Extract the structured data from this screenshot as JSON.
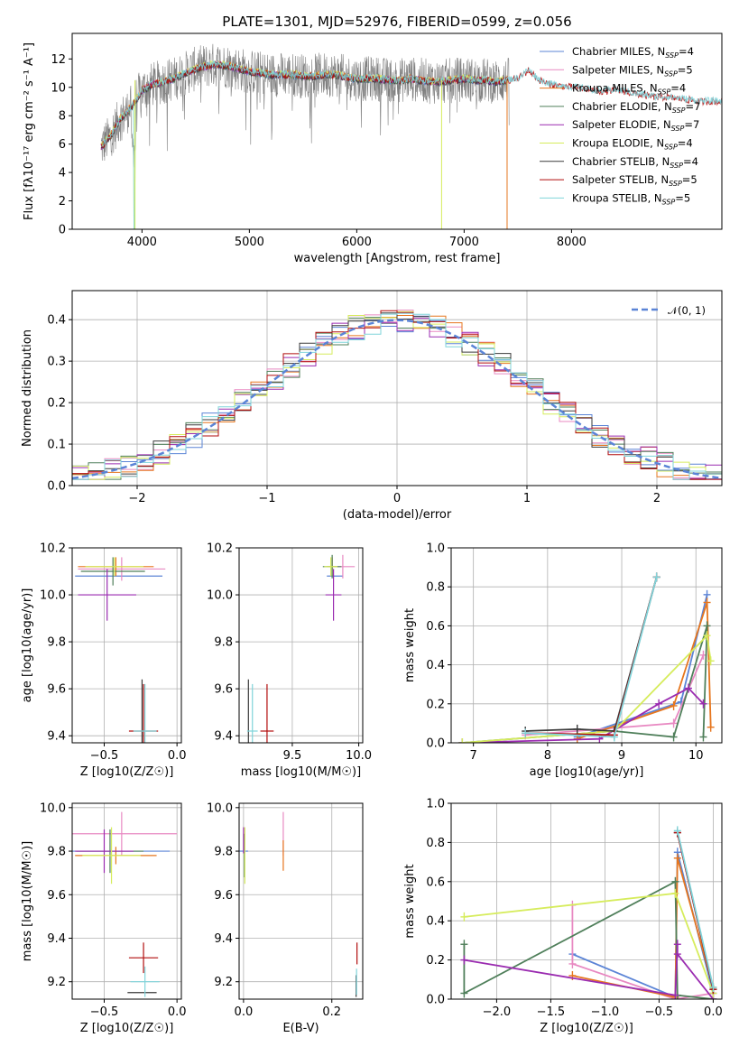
{
  "title": "PLATE=1301, MJD=52976, FIBERID=0599, z=0.056",
  "colors": {
    "Chabrier MILES": "#5b84d6",
    "Salpeter MILES": "#e889c2",
    "Kroupa MILES": "#e6761e",
    "Chabrier ELODIE": "#4f7f5a",
    "Salpeter ELODIE": "#9a2bb0",
    "Kroupa ELODIE": "#d6ec5c",
    "Chabrier STELIB": "#3a3a3a",
    "Salpeter STELIB": "#b10d0d",
    "Kroupa STELIB": "#7fd4da",
    "data": "#7f7f7f",
    "normal": "#5b84d6"
  },
  "legend": {
    "spectrum": [
      {
        "label": "Chabrier MILES, N",
        "sub": "SSP",
        "tail": "=4",
        "color": "#5b84d6"
      },
      {
        "label": "Salpeter MILES, N",
        "sub": "SSP",
        "tail": "=5",
        "color": "#e889c2"
      },
      {
        "label": "Kroupa MILES, N",
        "sub": "SSP",
        "tail": "=4",
        "color": "#e6761e"
      },
      {
        "label": "Chabrier ELODIE, N",
        "sub": "SSP",
        "tail": "=7",
        "color": "#4f7f5a"
      },
      {
        "label": "Salpeter ELODIE, N",
        "sub": "SSP",
        "tail": "=7",
        "color": "#9a2bb0"
      },
      {
        "label": "Kroupa ELODIE, N",
        "sub": "SSP",
        "tail": "=4",
        "color": "#d6ec5c"
      },
      {
        "label": "Chabrier STELIB, N",
        "sub": "SSP",
        "tail": "=4",
        "color": "#3a3a3a"
      },
      {
        "label": "Salpeter STELIB, N",
        "sub": "SSP",
        "tail": "=5",
        "color": "#b10d0d"
      },
      {
        "label": "Kroupa STELIB, N",
        "sub": "SSP",
        "tail": "=5",
        "color": "#7fd4da"
      }
    ],
    "hist": "𝒩(0, 1)"
  },
  "chart_data": [
    {
      "id": "spectrum",
      "type": "line",
      "xlabel": "wavelength [Angstrom, rest frame]",
      "ylabel": "Flux [fλ10⁻¹⁷ erg cm⁻² s⁻¹ A⁻¹]",
      "xlim": [
        3350,
        9400
      ],
      "ylim": [
        0,
        13.8
      ],
      "xticks": [
        4000,
        5000,
        6000,
        7000,
        8000
      ],
      "yticks": [
        0,
        2,
        4,
        6,
        8,
        10,
        12
      ],
      "x": [
        3620,
        3700,
        3800,
        3900,
        3960,
        4000,
        4100,
        4200,
        4300,
        4400,
        4500,
        4600,
        4700,
        4800,
        4900,
        5000,
        5100,
        5200,
        5300,
        5400,
        5500,
        5600,
        5700,
        5800,
        5900,
        6000,
        6100,
        6200,
        6300,
        6400,
        6500,
        6600,
        6700,
        6800,
        6900,
        7000,
        7100,
        7200,
        7300,
        7400,
        7500,
        7600,
        7700,
        7800,
        7900,
        8000,
        8100,
        8200,
        8300,
        8400,
        8500,
        8600,
        8700,
        8800,
        8900,
        9000,
        9100,
        9200
      ],
      "y": [
        5.8,
        6.5,
        7.8,
        8.6,
        9.3,
        9.8,
        10.2,
        10.4,
        10.6,
        11.0,
        11.3,
        11.5,
        11.6,
        11.5,
        11.3,
        11.1,
        11.0,
        10.9,
        10.9,
        10.9,
        10.8,
        10.8,
        10.9,
        10.9,
        10.7,
        10.6,
        10.6,
        10.6,
        10.5,
        10.5,
        10.6,
        10.5,
        10.4,
        10.4,
        10.5,
        10.6,
        10.5,
        10.5,
        10.4,
        10.5,
        10.6,
        11.2,
        10.5,
        10.2,
        10.1,
        10.0,
        9.9,
        9.8,
        9.7,
        9.8,
        9.7,
        9.5,
        9.4,
        9.3,
        9.3,
        9.2,
        9.1,
        9.0
      ]
    },
    {
      "id": "residual-hist",
      "type": "bar",
      "xlabel": "(data-model)/error",
      "ylabel": "Normed distribution",
      "xlim": [
        -2.5,
        2.5
      ],
      "ylim": [
        0,
        0.47
      ],
      "xticks": [
        -2,
        -1,
        0,
        1,
        2
      ],
      "yticks": [
        0.0,
        0.1,
        0.2,
        0.3,
        0.4
      ],
      "bin_width": 0.125,
      "gaussian": {
        "mean": 0,
        "sigma": 1
      }
    },
    {
      "id": "age-vs-Z",
      "type": "scatter",
      "xlabel": "Z [log10(Z/Z☉)]",
      "ylabel": "age  [log10(age/yr)]",
      "xlim": [
        -0.72,
        0.03
      ],
      "ylim": [
        9.37,
        10.2
      ],
      "xticks": [
        -0.5,
        0.0
      ],
      "yticks": [
        9.4,
        9.6,
        9.8,
        10.0,
        10.2
      ],
      "points": [
        {
          "series": "Chabrier MILES",
          "x": -0.4,
          "y": 10.08,
          "xerr": 0.3,
          "yerr": 0.0
        },
        {
          "series": "Salpeter MILES",
          "x": -0.38,
          "y": 10.11,
          "xerr": 0.3,
          "yerr": 0.05
        },
        {
          "series": "Kroupa MILES",
          "x": -0.42,
          "y": 10.12,
          "xerr": 0.26,
          "yerr": 0.04
        },
        {
          "series": "Chabrier ELODIE",
          "x": -0.44,
          "y": 10.1,
          "xerr": 0.22,
          "yerr": 0.06
        },
        {
          "series": "Salpeter ELODIE",
          "x": -0.48,
          "y": 10.0,
          "xerr": 0.2,
          "yerr": 0.11
        },
        {
          "series": "Kroupa ELODIE",
          "x": -0.43,
          "y": 10.12,
          "xerr": 0.2,
          "yerr": 0.04
        },
        {
          "series": "Chabrier STELIB",
          "x": -0.24,
          "y": 9.42,
          "xerr": 0.0,
          "yerr": 0.22
        },
        {
          "series": "Salpeter STELIB",
          "x": -0.23,
          "y": 9.42,
          "xerr": 0.1,
          "yerr": 0.2
        },
        {
          "series": "Kroupa STELIB",
          "x": -0.22,
          "y": 9.42,
          "xerr": 0.08,
          "yerr": 0.2
        }
      ]
    },
    {
      "id": "age-vs-mass",
      "type": "scatter",
      "xlabel": "mass [log10(M/M☉)]",
      "ylabel": "",
      "xlim": [
        9.1,
        10.03
      ],
      "ylim": [
        9.37,
        10.2
      ],
      "xticks": [
        9.5,
        10.0
      ],
      "yticks": [
        9.4,
        9.6,
        9.8,
        10.0,
        10.2
      ],
      "points": [
        {
          "series": "Chabrier MILES",
          "x": 9.82,
          "y": 10.08,
          "xerr": 0.06,
          "yerr": 0.0
        },
        {
          "series": "Salpeter MILES",
          "x": 9.88,
          "y": 10.12,
          "xerr": 0.09,
          "yerr": 0.05
        },
        {
          "series": "Kroupa MILES",
          "x": 9.8,
          "y": 10.12,
          "xerr": 0.04,
          "yerr": 0.04
        },
        {
          "series": "Chabrier ELODIE",
          "x": 9.8,
          "y": 10.12,
          "xerr": 0.07,
          "yerr": 0.05
        },
        {
          "series": "Salpeter ELODIE",
          "x": 9.81,
          "y": 10.0,
          "xerr": 0.06,
          "yerr": 0.11
        },
        {
          "series": "Kroupa ELODIE",
          "x": 9.79,
          "y": 10.12,
          "xerr": 0.05,
          "yerr": 0.04
        },
        {
          "series": "Chabrier STELIB",
          "x": 9.17,
          "y": 9.42,
          "xerr": 0.0,
          "yerr": 0.22
        },
        {
          "series": "Salpeter STELIB",
          "x": 9.31,
          "y": 9.42,
          "xerr": 0.05,
          "yerr": 0.2
        },
        {
          "series": "Kroupa STELIB",
          "x": 9.2,
          "y": 9.42,
          "xerr": 0.04,
          "yerr": 0.2
        }
      ]
    },
    {
      "id": "weight-vs-age",
      "type": "line",
      "xlabel": "age  [log10(age/yr)]",
      "ylabel": "mass weight",
      "xlim": [
        6.7,
        10.35
      ],
      "ylim": [
        0,
        1.0
      ],
      "xticks": [
        7,
        8,
        9,
        10
      ],
      "yticks": [
        0.0,
        0.2,
        0.4,
        0.6,
        0.8,
        1.0
      ],
      "series": [
        {
          "name": "Chabrier MILES",
          "x": [
            8.4,
            9.8,
            10.15
          ],
          "y": [
            0.03,
            0.21,
            0.76
          ]
        },
        {
          "name": "Salpeter MILES",
          "x": [
            7.7,
            9.7,
            10.1
          ],
          "y": [
            0.04,
            0.1,
            0.45
          ]
        },
        {
          "name": "Kroupa MILES",
          "x": [
            8.4,
            9.7,
            10.15,
            10.2
          ],
          "y": [
            0.02,
            0.19,
            0.72,
            0.08
          ]
        },
        {
          "name": "Chabrier ELODIE",
          "x": [
            6.85,
            8.9,
            9.7,
            10.15,
            10.1
          ],
          "y": [
            0.0,
            0.06,
            0.03,
            0.6,
            0.03
          ]
        },
        {
          "name": "Salpeter ELODIE",
          "x": [
            6.85,
            8.7,
            9.5,
            9.9,
            10.1
          ],
          "y": [
            0.0,
            0.02,
            0.2,
            0.28,
            0.2
          ]
        },
        {
          "name": "Kroupa ELODIE",
          "x": [
            6.85,
            8.9,
            10.15,
            10.2
          ],
          "y": [
            0.0,
            0.06,
            0.55,
            0.42
          ]
        },
        {
          "name": "Chabrier STELIB",
          "x": [
            7.7,
            8.4,
            8.9,
            9.47
          ],
          "y": [
            0.06,
            0.07,
            0.06,
            0.85
          ]
        },
        {
          "name": "Salpeter STELIB",
          "x": [
            7.7,
            8.9,
            9.47
          ],
          "y": [
            0.05,
            0.04,
            0.85
          ]
        },
        {
          "name": "Kroupa STELIB",
          "x": [
            7.7,
            8.9,
            9.47
          ],
          "y": [
            0.05,
            0.03,
            0.85
          ]
        }
      ]
    },
    {
      "id": "mass-vs-Z",
      "type": "scatter",
      "xlabel": "Z [log10(Z/Z☉)]",
      "ylabel": "mass [log10(M/M☉)]",
      "xlim": [
        -0.72,
        0.03
      ],
      "ylim": [
        9.12,
        10.02
      ],
      "xticks": [
        -0.5,
        0.0
      ],
      "yticks": [
        9.2,
        9.4,
        9.6,
        9.8,
        10.0
      ],
      "points": [
        {
          "series": "Chabrier MILES",
          "x": -0.4,
          "y": 9.8,
          "xerr": 0.35,
          "yerr": 0.0
        },
        {
          "series": "Salpeter MILES",
          "x": -0.38,
          "y": 9.88,
          "xerr": 0.38,
          "yerr": 0.1
        },
        {
          "series": "Kroupa MILES",
          "x": -0.42,
          "y": 9.78,
          "xerr": 0.28,
          "yerr": 0.04
        },
        {
          "series": "Chabrier ELODIE",
          "x": -0.46,
          "y": 9.8,
          "xerr": 0.23,
          "yerr": 0.1
        },
        {
          "series": "Salpeter ELODIE",
          "x": -0.5,
          "y": 9.8,
          "xerr": 0.2,
          "yerr": 0.1
        },
        {
          "series": "Kroupa ELODIE",
          "x": -0.45,
          "y": 9.78,
          "xerr": 0.2,
          "yerr": 0.13
        },
        {
          "series": "Chabrier STELIB",
          "x": -0.24,
          "y": 9.15,
          "xerr": 0.1,
          "yerr": 0.0
        },
        {
          "series": "Salpeter STELIB",
          "x": -0.23,
          "y": 9.31,
          "xerr": 0.1,
          "yerr": 0.07
        },
        {
          "series": "Kroupa STELIB",
          "x": -0.22,
          "y": 9.2,
          "xerr": 0.1,
          "yerr": 0.07
        }
      ]
    },
    {
      "id": "mass-vs-ebv",
      "type": "scatter",
      "xlabel": "E(B-V)",
      "ylabel": "",
      "xlim": [
        -0.01,
        0.27
      ],
      "ylim": [
        9.12,
        10.02
      ],
      "xticks": [
        0.0,
        0.2
      ],
      "yticks": [
        9.2,
        9.4,
        9.6,
        9.8,
        10.0
      ],
      "points": [
        {
          "series": "Chabrier MILES",
          "x": 0.0,
          "y": 9.8,
          "xerr": 0,
          "yerr": 0.0
        },
        {
          "series": "Salpeter MILES",
          "x": 0.09,
          "y": 9.88,
          "xerr": 0,
          "yerr": 0.1
        },
        {
          "series": "Kroupa MILES",
          "x": 0.09,
          "y": 9.78,
          "xerr": 0,
          "yerr": 0.07
        },
        {
          "series": "Chabrier ELODIE",
          "x": 0.002,
          "y": 9.78,
          "xerr": 0,
          "yerr": 0.1
        },
        {
          "series": "Salpeter ELODIE",
          "x": 0.0,
          "y": 9.85,
          "xerr": 0,
          "yerr": 0.06
        },
        {
          "series": "Kroupa ELODIE",
          "x": 0.003,
          "y": 9.78,
          "xerr": 0,
          "yerr": 0.13
        },
        {
          "series": "Chabrier STELIB",
          "x": 0.255,
          "y": 9.18,
          "xerr": 0,
          "yerr": 0.05
        },
        {
          "series": "Salpeter STELIB",
          "x": 0.257,
          "y": 9.33,
          "xerr": 0,
          "yerr": 0.05
        },
        {
          "series": "Kroupa STELIB",
          "x": 0.256,
          "y": 9.2,
          "xerr": 0,
          "yerr": 0.06
        }
      ]
    },
    {
      "id": "weight-vs-Z",
      "type": "line",
      "xlabel": "Z [log10(Z/Z☉)]",
      "ylabel": "mass weight",
      "xlim": [
        -2.42,
        0.08
      ],
      "ylim": [
        0,
        1.0
      ],
      "xticks": [
        -2.0,
        -1.5,
        -1.0,
        -0.5,
        0.0
      ],
      "yticks": [
        0.0,
        0.2,
        0.4,
        0.6,
        0.8,
        1.0
      ],
      "series": [
        {
          "name": "Chabrier MILES",
          "x": [
            -1.3,
            -0.35,
            -0.33,
            0.0
          ],
          "y": [
            0.23,
            0.01,
            0.75,
            0.03
          ]
        },
        {
          "name": "Salpeter MILES",
          "x": [
            -1.3,
            -1.3,
            -0.35,
            0.0
          ],
          "y": [
            0.48,
            0.18,
            0.0,
            0.03
          ]
        },
        {
          "name": "Kroupa MILES",
          "x": [
            -1.3,
            -0.35,
            -0.33,
            0.0
          ],
          "y": [
            0.12,
            0.01,
            0.72,
            0.06
          ]
        },
        {
          "name": "Chabrier ELODIE",
          "x": [
            -2.3,
            -2.3,
            -0.35,
            -0.33,
            0.0
          ],
          "y": [
            0.28,
            0.03,
            0.6,
            0.02,
            0.0
          ]
        },
        {
          "name": "Salpeter ELODIE",
          "x": [
            -2.3,
            -0.35,
            -0.33,
            -0.33,
            0.0
          ],
          "y": [
            0.2,
            0.02,
            0.28,
            0.23,
            0.0
          ]
        },
        {
          "name": "Kroupa ELODIE",
          "x": [
            -2.3,
            -0.35,
            0.0
          ],
          "y": [
            0.42,
            0.54,
            0.03
          ]
        },
        {
          "name": "Chabrier STELIB",
          "x": [
            -0.33,
            0.0
          ],
          "y": [
            0.85,
            0.05
          ]
        },
        {
          "name": "Salpeter STELIB",
          "x": [
            -0.33,
            0.0
          ],
          "y": [
            0.85,
            0.05
          ]
        },
        {
          "name": "Kroupa STELIB",
          "x": [
            -0.33,
            0.0
          ],
          "y": [
            0.86,
            0.06
          ]
        }
      ]
    }
  ]
}
